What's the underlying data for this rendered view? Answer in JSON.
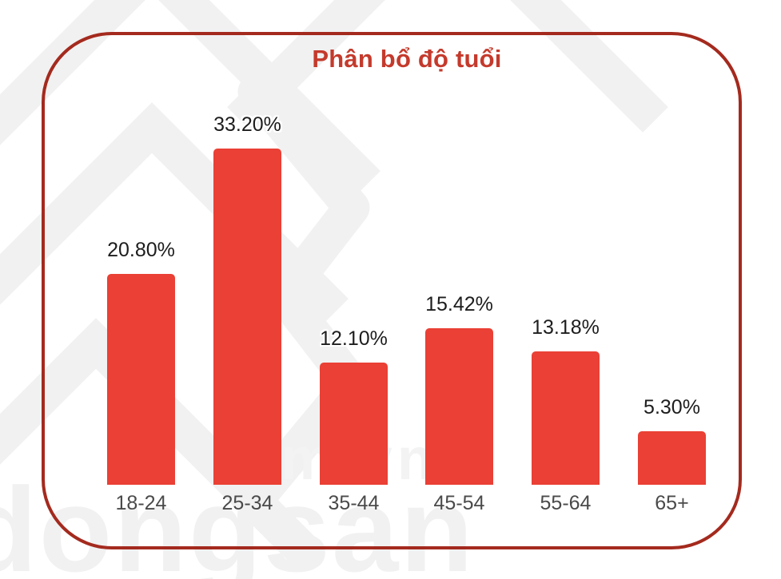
{
  "page": {
    "background": "#ffffff"
  },
  "card": {
    "border_color": "#A42A1E"
  },
  "chart_data": {
    "type": "bar",
    "title": "Phân bổ độ tuổi",
    "title_color": "#C43A2C",
    "bar_color": "#EA4035",
    "categories": [
      "18-24",
      "25-34",
      "35-44",
      "45-54",
      "55-64",
      "65+"
    ],
    "values": [
      20.8,
      33.2,
      12.1,
      15.42,
      13.18,
      5.3
    ],
    "value_labels": [
      "20.80%",
      "33.20%",
      "12.10%",
      "15.42%",
      "13.18%",
      "5.30%"
    ],
    "xlabel": "",
    "ylabel": "",
    "ylim": [
      0,
      35
    ],
    "grid": false,
    "legend": false,
    "value_label_color": "#1d1d1d",
    "tick_label_color": "#4a4a4a"
  },
  "watermark": {
    "bottom_text": "dongsan",
    "mid_text": "om.vn",
    "color": "#f1f1f1"
  }
}
